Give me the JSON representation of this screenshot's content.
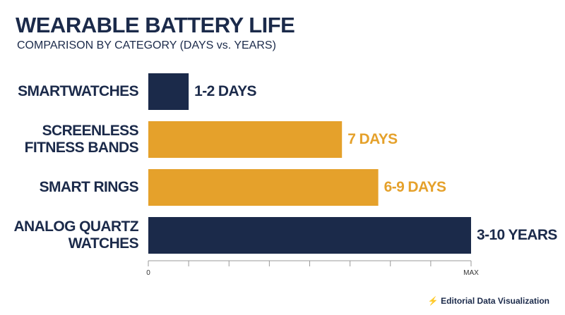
{
  "chart_data": {
    "type": "bar",
    "orientation": "horizontal",
    "title": "WEARABLE BATTERY LIFE",
    "subtitle": "COMPARISON BY CATEGORY (DAYS vs. YEARS)",
    "footer": "⚡ Editorial Data Visualization",
    "categories": [
      "SMARTWATCHES",
      "SCREENLESS FITNESS BANDS",
      "SMART RINGS",
      "ANALOG QUARTZ WATCHES"
    ],
    "values": [
      1,
      4.8,
      5.7,
      8
    ],
    "value_labels": [
      "1-2 DAYS",
      "7 DAYS",
      "6-9 DAYS",
      "3-10 YEARS"
    ],
    "colors": [
      "#1b2a4a",
      "#e5a12b",
      "#e5a12b",
      "#1b2a4a"
    ],
    "xlim": [
      0,
      8
    ],
    "xticks": [
      0,
      {
        "value": 1,
        "label": null
      },
      {
        "value": 2,
        "label": null
      },
      {
        "value": 3,
        "label": null
      },
      {
        "value": 4,
        "label": null
      },
      {
        "value": 5,
        "label": null
      },
      {
        "value": 6,
        "label": null
      },
      {
        "value": 7,
        "label": null
      },
      {
        "value": 8,
        "label": "MAX"
      }
    ]
  }
}
